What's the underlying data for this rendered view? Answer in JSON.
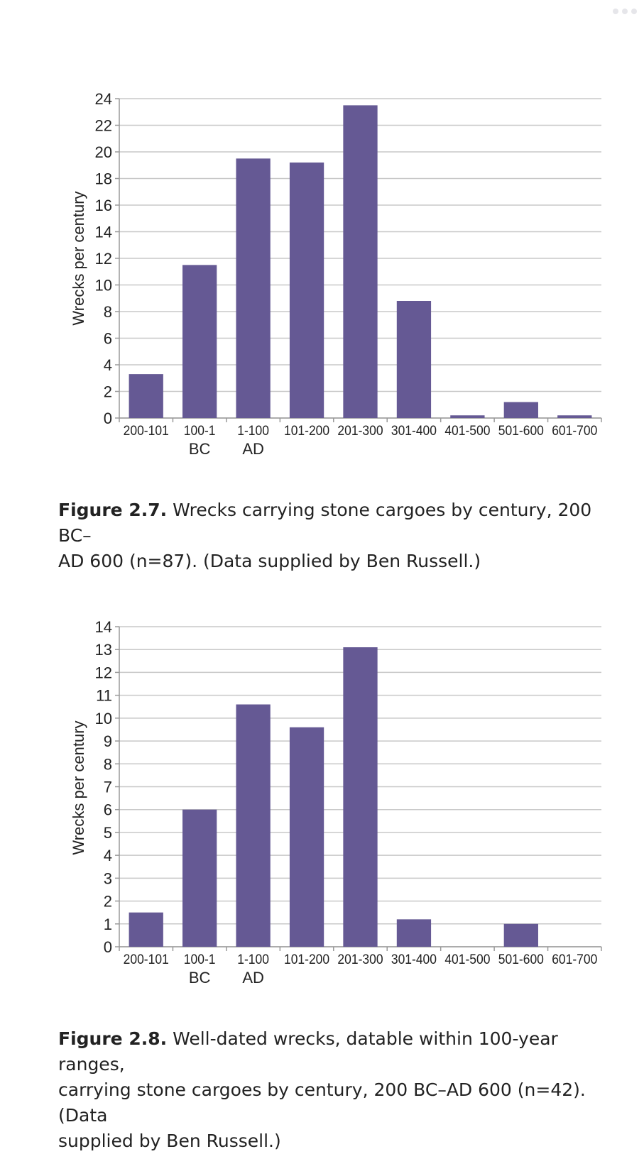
{
  "colors": {
    "bar": "#655994",
    "grid": "#c8c8c8",
    "axis": "#9a9a9a",
    "text": "#222222"
  },
  "chrome": {
    "more_icon": "more-dots-icon"
  },
  "figures": [
    {
      "caption_label": "Figure 2.7.",
      "caption_text": "Wrecks carrying stone cargoes by century, 200 BC–AD 600 (n=87). (Data supplied by Ben Russell.)",
      "caption_lines": [
        "Wrecks carrying stone cargoes by century, 200 BC–",
        "AD 600 (n=87). (Data supplied by Ben Russell.)"
      ]
    },
    {
      "caption_label": "Figure 2.8.",
      "caption_text": "Well-dated wrecks, datable within 100-year ranges, carrying stone cargoes by century, 200 BC–AD 600 (n=42). (Data supplied by Ben Russell.)",
      "caption_lines": [
        "Well-dated wrecks, datable within 100-year ranges,",
        "carrying stone cargoes by century, 200 BC–AD 600 (n=42). (Data",
        "supplied by Ben Russell.)"
      ]
    }
  ],
  "chart_data": [
    {
      "type": "bar",
      "title": "",
      "xlabel": "",
      "ylabel": "Wrecks per century",
      "categories": [
        "200-101",
        "100-1",
        "1-100",
        "101-200",
        "201-300",
        "301-400",
        "401-500",
        "501-600",
        "601-700"
      ],
      "era_labels": [
        "BC",
        "AD"
      ],
      "values": [
        3.3,
        11.5,
        19.5,
        19.2,
        23.5,
        8.8,
        0.2,
        1.2,
        0.2
      ],
      "ylim": [
        0,
        24
      ],
      "yticks": [
        0,
        2,
        4,
        6,
        8,
        10,
        12,
        14,
        16,
        18,
        20,
        22,
        24
      ],
      "grid": true,
      "legend": "none"
    },
    {
      "type": "bar",
      "title": "",
      "xlabel": "",
      "ylabel": "Wrecks per century",
      "categories": [
        "200-101",
        "100-1",
        "1-100",
        "101-200",
        "201-300",
        "301-400",
        "401-500",
        "501-600",
        "601-700"
      ],
      "era_labels": [
        "BC",
        "AD"
      ],
      "values": [
        1.5,
        6.0,
        10.6,
        9.6,
        13.1,
        1.2,
        0,
        1.0,
        0
      ],
      "ylim": [
        0,
        14
      ],
      "yticks": [
        0,
        1,
        2,
        3,
        4,
        5,
        6,
        7,
        8,
        9,
        10,
        11,
        12,
        13,
        14
      ],
      "grid": true,
      "legend": "none"
    }
  ]
}
